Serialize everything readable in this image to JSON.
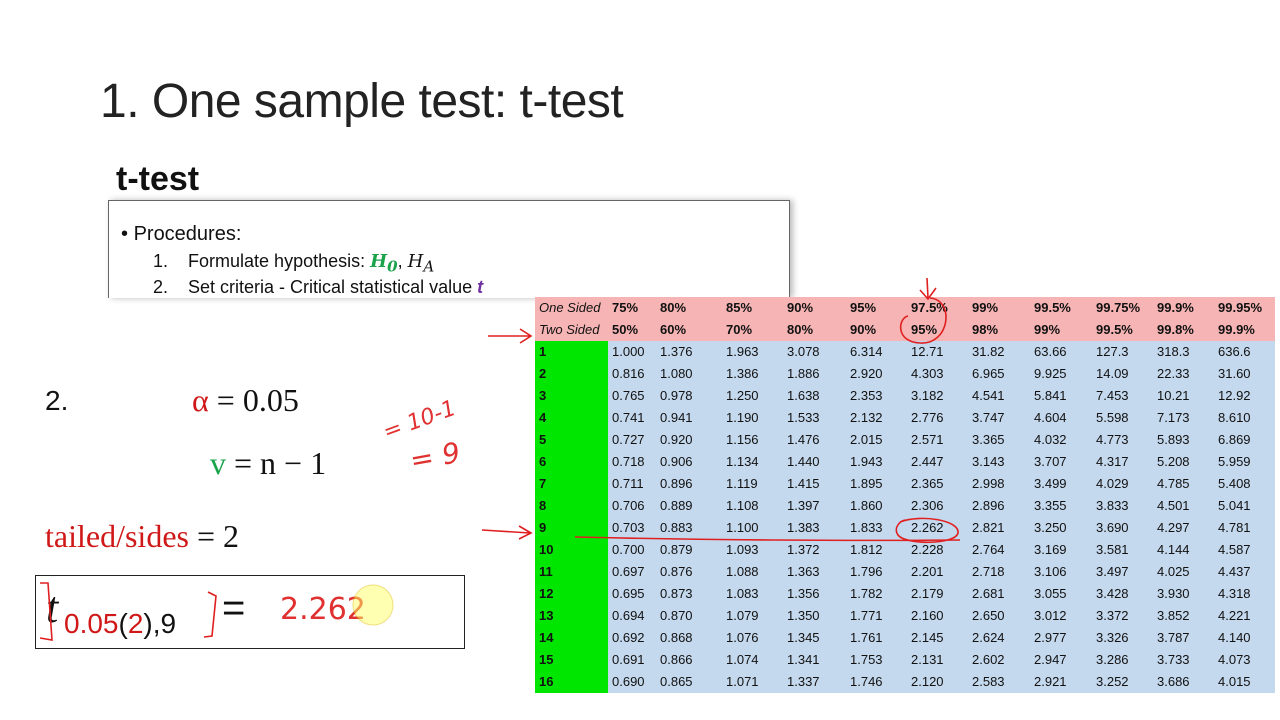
{
  "title": "1. One sample test: t-test",
  "embedded": {
    "heading": "t-test",
    "bullet": "Procedures:",
    "steps": [
      {
        "number": "1.",
        "text": "Formulate hypothesis:",
        "h0": {
          "symbol": "H",
          "subscript": "0"
        },
        "separator": ",",
        "ha": {
          "symbol": "H",
          "subscript": "A"
        }
      },
      {
        "number": "2.",
        "text": "Set criteria  - Critical statistical value",
        "symbol": "t"
      }
    ]
  },
  "step_number": "2.",
  "alpha": {
    "symbol": "α",
    "rhs": "= 0.05"
  },
  "dof": {
    "symbol": "v",
    "rhs": "= n − 1"
  },
  "tails": {
    "label": "tailed/sides",
    "rhs": "= 2"
  },
  "result": {
    "symbol": "t",
    "alpha": "0.05",
    "open": "(",
    "tails": "2",
    "close": "),9",
    "equals": "="
  },
  "handwriting": {
    "dof_line1": "= 10-1",
    "dof_line2": "= 9",
    "answer": "2.262"
  },
  "table": {
    "header_rows": [
      [
        "One Sided",
        "75%",
        "80%",
        "85%",
        "90%",
        "95%",
        "97.5%",
        "99%",
        "99.5%",
        "99.75%",
        "99.9%",
        "99.95%"
      ],
      [
        "Two Sided",
        "50%",
        "60%",
        "70%",
        "80%",
        "90%",
        "95%",
        "98%",
        "99%",
        "99.5%",
        "99.8%",
        "99.9%"
      ]
    ],
    "rows": [
      [
        "1",
        "1.000",
        "1.376",
        "1.963",
        "3.078",
        "6.314",
        "12.71",
        "31.82",
        "63.66",
        "127.3",
        "318.3",
        "636.6"
      ],
      [
        "2",
        "0.816",
        "1.080",
        "1.386",
        "1.886",
        "2.920",
        "4.303",
        "6.965",
        "9.925",
        "14.09",
        "22.33",
        "31.60"
      ],
      [
        "3",
        "0.765",
        "0.978",
        "1.250",
        "1.638",
        "2.353",
        "3.182",
        "4.541",
        "5.841",
        "7.453",
        "10.21",
        "12.92"
      ],
      [
        "4",
        "0.741",
        "0.941",
        "1.190",
        "1.533",
        "2.132",
        "2.776",
        "3.747",
        "4.604",
        "5.598",
        "7.173",
        "8.610"
      ],
      [
        "5",
        "0.727",
        "0.920",
        "1.156",
        "1.476",
        "2.015",
        "2.571",
        "3.365",
        "4.032",
        "4.773",
        "5.893",
        "6.869"
      ],
      [
        "6",
        "0.718",
        "0.906",
        "1.134",
        "1.440",
        "1.943",
        "2.447",
        "3.143",
        "3.707",
        "4.317",
        "5.208",
        "5.959"
      ],
      [
        "7",
        "0.711",
        "0.896",
        "1.119",
        "1.415",
        "1.895",
        "2.365",
        "2.998",
        "3.499",
        "4.029",
        "4.785",
        "5.408"
      ],
      [
        "8",
        "0.706",
        "0.889",
        "1.108",
        "1.397",
        "1.860",
        "2.306",
        "2.896",
        "3.355",
        "3.833",
        "4.501",
        "5.041"
      ],
      [
        "9",
        "0.703",
        "0.883",
        "1.100",
        "1.383",
        "1.833",
        "2.262",
        "2.821",
        "3.250",
        "3.690",
        "4.297",
        "4.781"
      ],
      [
        "10",
        "0.700",
        "0.879",
        "1.093",
        "1.372",
        "1.812",
        "2.228",
        "2.764",
        "3.169",
        "3.581",
        "4.144",
        "4.587"
      ],
      [
        "11",
        "0.697",
        "0.876",
        "1.088",
        "1.363",
        "1.796",
        "2.201",
        "2.718",
        "3.106",
        "3.497",
        "4.025",
        "4.437"
      ],
      [
        "12",
        "0.695",
        "0.873",
        "1.083",
        "1.356",
        "1.782",
        "2.179",
        "2.681",
        "3.055",
        "3.428",
        "3.930",
        "4.318"
      ],
      [
        "13",
        "0.694",
        "0.870",
        "1.079",
        "1.350",
        "1.771",
        "2.160",
        "2.650",
        "3.012",
        "3.372",
        "3.852",
        "4.221"
      ],
      [
        "14",
        "0.692",
        "0.868",
        "1.076",
        "1.345",
        "1.761",
        "2.145",
        "2.624",
        "2.977",
        "3.326",
        "3.787",
        "4.140"
      ],
      [
        "15",
        "0.691",
        "0.866",
        "1.074",
        "1.341",
        "1.753",
        "2.131",
        "2.602",
        "2.947",
        "3.286",
        "3.733",
        "4.073"
      ],
      [
        "16",
        "0.690",
        "0.865",
        "1.071",
        "1.337",
        "1.746",
        "2.120",
        "2.583",
        "2.921",
        "3.252",
        "3.686",
        "4.015"
      ]
    ]
  }
}
